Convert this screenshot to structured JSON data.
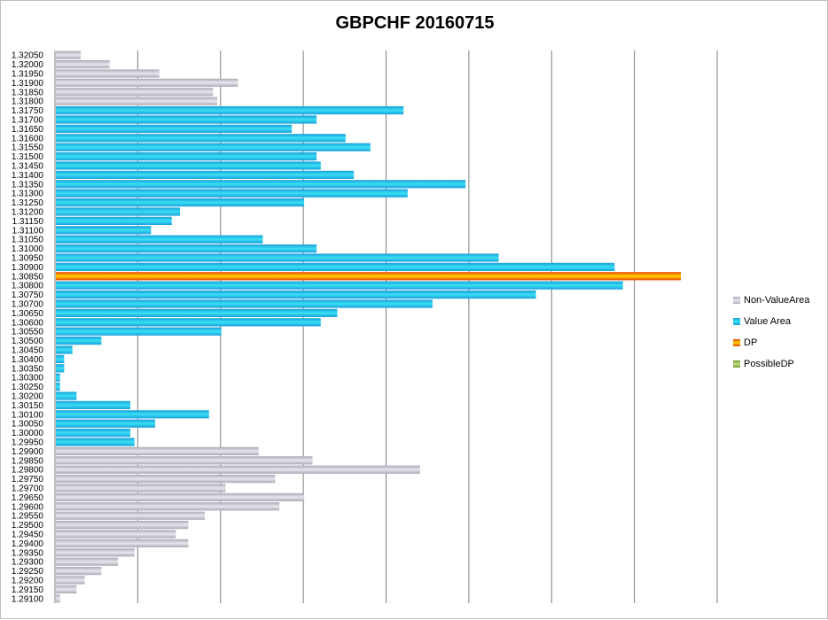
{
  "chart_data": {
    "type": "bar",
    "orientation": "horizontal",
    "title": "GBPCHF 20160715",
    "xlabel": "",
    "ylabel": "",
    "xlim": [
      0,
      800
    ],
    "grid": true,
    "legend_position": "right",
    "series": [
      {
        "name": "Non-ValueArea",
        "color": "#a9aab4",
        "highlight": "#e6e7ee"
      },
      {
        "name": "Value Area",
        "color": "#1a9fdc",
        "highlight": "#39e0f4"
      },
      {
        "name": "DP",
        "color": "#e64500",
        "highlight": "#ffd500"
      },
      {
        "name": "PossibleDP",
        "color": "#6f9a2a",
        "highlight": "#c6e08a"
      }
    ],
    "categories": [
      "1.32050",
      "1.32000",
      "1.31950",
      "1.31900",
      "1.31850",
      "1.31800",
      "1.31750",
      "1.31700",
      "1.31650",
      "1.31600",
      "1.31550",
      "1.31500",
      "1.31450",
      "1.31400",
      "1.31350",
      "1.31300",
      "1.31250",
      "1.31200",
      "1.31150",
      "1.31100",
      "1.31050",
      "1.31000",
      "1.30950",
      "1.30900",
      "1.30850",
      "1.30800",
      "1.30750",
      "1.30700",
      "1.30650",
      "1.30600",
      "1.30550",
      "1.30500",
      "1.30450",
      "1.30400",
      "1.30350",
      "1.30300",
      "1.30250",
      "1.30200",
      "1.30150",
      "1.30100",
      "1.30050",
      "1.30000",
      "1.29950",
      "1.29900",
      "1.29850",
      "1.29800",
      "1.29750",
      "1.29700",
      "1.29650",
      "1.29600",
      "1.29550",
      "1.29500",
      "1.29450",
      "1.29400",
      "1.29350",
      "1.29300",
      "1.29250",
      "1.29200",
      "1.29150",
      "1.29100"
    ],
    "values": [
      30,
      65,
      125,
      220,
      190,
      195,
      420,
      315,
      285,
      350,
      380,
      315,
      320,
      360,
      495,
      425,
      300,
      150,
      140,
      115,
      250,
      315,
      535,
      675,
      755,
      685,
      580,
      455,
      340,
      320,
      200,
      55,
      20,
      10,
      10,
      5,
      5,
      25,
      90,
      185,
      120,
      90,
      95,
      245,
      310,
      440,
      265,
      205,
      300,
      270,
      180,
      160,
      145,
      160,
      95,
      75,
      55,
      35,
      25,
      5
    ],
    "series_index": [
      0,
      0,
      0,
      0,
      0,
      0,
      1,
      1,
      1,
      1,
      1,
      1,
      1,
      1,
      1,
      1,
      1,
      1,
      1,
      1,
      1,
      1,
      1,
      1,
      2,
      1,
      1,
      1,
      1,
      1,
      1,
      1,
      1,
      1,
      1,
      1,
      1,
      1,
      1,
      1,
      1,
      1,
      1,
      0,
      0,
      0,
      0,
      0,
      0,
      0,
      0,
      0,
      0,
      0,
      0,
      0,
      0,
      0,
      0,
      0
    ]
  }
}
